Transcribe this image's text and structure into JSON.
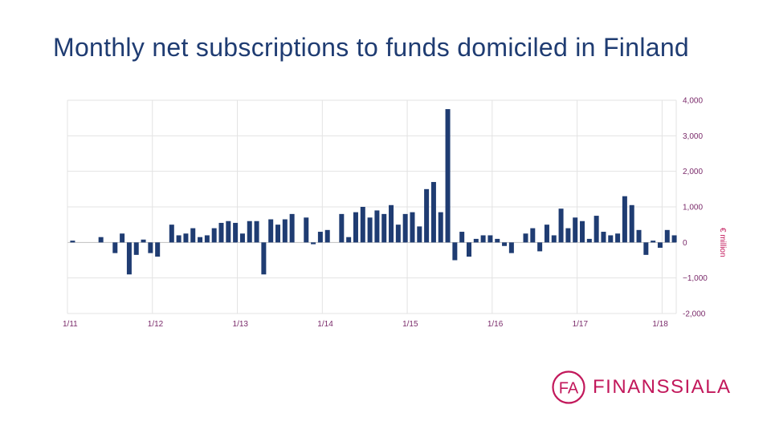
{
  "title": "Monthly net subscriptions to funds domiciled in Finland",
  "logo": {
    "text": "FINANSSIALA",
    "mark": "FA"
  },
  "colors": {
    "bar": "#1f3c72",
    "title": "#1f3c72",
    "tick": "#7a2a6a",
    "logo": "#c2185b"
  },
  "chart_data": {
    "type": "bar",
    "title": "Monthly net subscriptions to funds domiciled in Finland",
    "ylabel": "€ million",
    "xlabel": "",
    "ylim": [
      -2000,
      4000
    ],
    "yticks": [
      4000,
      3000,
      2000,
      1000,
      0,
      -1000,
      -2000
    ],
    "ytick_labels": [
      "4,000",
      "3,000",
      "2,000",
      "1,000",
      "0",
      "−1,000",
      "-2,000"
    ],
    "xtick_labels": [
      "1/11",
      "1/12",
      "1/13",
      "1/14",
      "1/15",
      "1/16",
      "1/17",
      "1/18"
    ],
    "grid": true,
    "y_axis_position": "right",
    "series": [
      {
        "values": [
          50,
          0,
          0,
          0,
          150,
          0,
          -300,
          250,
          -900,
          -350,
          80,
          -300,
          -400,
          0,
          500,
          200,
          250,
          400,
          150,
          200,
          400,
          550,
          600,
          550,
          250,
          600,
          600,
          -900,
          650,
          500,
          650,
          800,
          0,
          700,
          -50,
          300,
          350,
          0,
          800,
          150,
          850,
          1000,
          700,
          900,
          800,
          1050,
          500,
          800,
          850,
          450,
          1500,
          1700,
          850,
          3750,
          -500,
          300,
          -400,
          100,
          200,
          200,
          100,
          -100,
          -300,
          0,
          250,
          400,
          -250,
          500,
          200,
          950,
          400,
          700,
          600,
          100,
          750,
          300,
          200,
          250,
          1300,
          1050,
          350,
          -350,
          50,
          -150,
          350,
          200
        ]
      }
    ]
  }
}
